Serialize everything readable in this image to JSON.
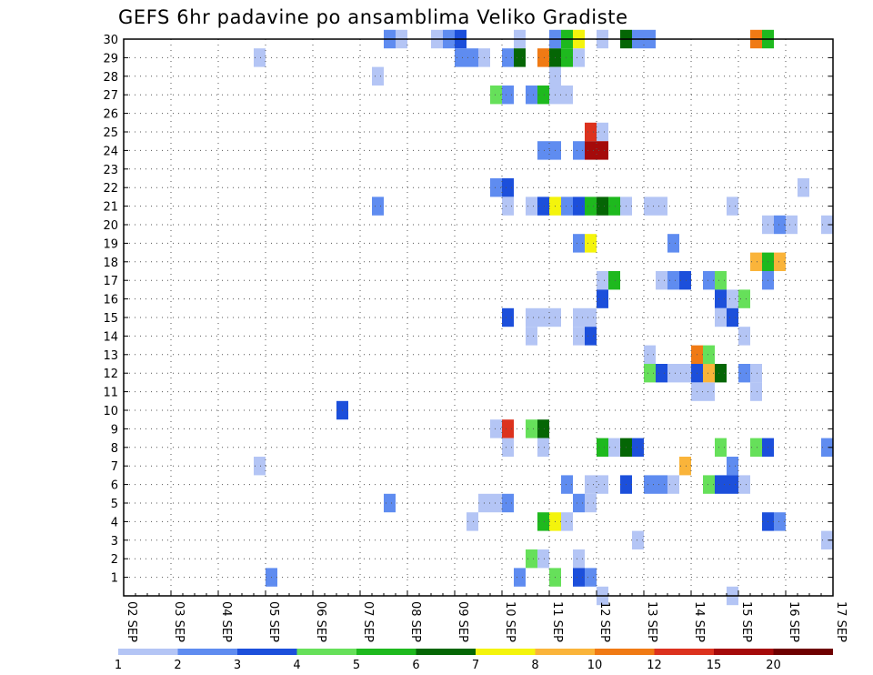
{
  "chart_data": {
    "type": "heatmap",
    "title": "GEFS 6hr padavine po ansamblima Veliko Gradiste",
    "xlabel": "",
    "ylabel": "",
    "x_ticks": [
      "02 SEP",
      "03 SEP",
      "04 SEP",
      "05 SEP",
      "06 SEP",
      "07 SEP",
      "08 SEP",
      "09 SEP",
      "10 SEP",
      "11 SEP",
      "12 SEP",
      "13 SEP",
      "14 SEP",
      "15 SEP",
      "16 SEP",
      "17 SEP"
    ],
    "y_ticks": [
      "1",
      "2",
      "3",
      "4",
      "5",
      "6",
      "7",
      "8",
      "9",
      "10",
      "11",
      "12",
      "13",
      "14",
      "15",
      "16",
      "17",
      "18",
      "19",
      "20",
      "21",
      "22",
      "23",
      "24",
      "25",
      "26",
      "27",
      "28",
      "29",
      "30"
    ],
    "ylim": [
      0,
      30
    ],
    "x_units": "6-hour steps from 02 SEP 00Z (4 per day)",
    "grid": true,
    "colorbar": {
      "labels": [
        "1",
        "2",
        "3",
        "4",
        "5",
        "6",
        "7",
        "8",
        "10",
        "12",
        "15",
        "20"
      ],
      "bins": [
        {
          "min": 1,
          "max": 2,
          "color": "#b4c5f5"
        },
        {
          "min": 2,
          "max": 3,
          "color": "#5f8cf0"
        },
        {
          "min": 3,
          "max": 4,
          "color": "#1c4fdb"
        },
        {
          "min": 4,
          "max": 5,
          "color": "#66e05a"
        },
        {
          "min": 5,
          "max": 6,
          "color": "#1eb91e"
        },
        {
          "min": 6,
          "max": 7,
          "color": "#056605"
        },
        {
          "min": 7,
          "max": 8,
          "color": "#f4f40c"
        },
        {
          "min": 8,
          "max": 10,
          "color": "#fab43a"
        },
        {
          "min": 10,
          "max": 12,
          "color": "#f07a14"
        },
        {
          "min": 12,
          "max": 15,
          "color": "#dc321e"
        },
        {
          "min": 15,
          "max": 20,
          "color": "#a50a0a"
        },
        {
          "min": 20,
          "max": 25,
          "color": "#6e0000"
        }
      ]
    },
    "cells": [
      {
        "member": 30,
        "step": 22,
        "value": 2
      },
      {
        "member": 30,
        "step": 23,
        "value": 1
      },
      {
        "member": 30,
        "step": 26,
        "value": 1
      },
      {
        "member": 30,
        "step": 27,
        "value": 2
      },
      {
        "member": 30,
        "step": 28,
        "value": 3
      },
      {
        "member": 30,
        "step": 33,
        "value": 1
      },
      {
        "member": 30,
        "step": 36,
        "value": 2
      },
      {
        "member": 30,
        "step": 37,
        "value": 5
      },
      {
        "member": 30,
        "step": 38,
        "value": 7
      },
      {
        "member": 30,
        "step": 40,
        "value": 1
      },
      {
        "member": 30,
        "step": 42,
        "value": 6
      },
      {
        "member": 30,
        "step": 43,
        "value": 2
      },
      {
        "member": 30,
        "step": 44,
        "value": 2
      },
      {
        "member": 30,
        "step": 53,
        "value": 10
      },
      {
        "member": 30,
        "step": 54,
        "value": 5
      },
      {
        "member": 29,
        "step": 11,
        "value": 1
      },
      {
        "member": 29,
        "step": 28,
        "value": 2
      },
      {
        "member": 29,
        "step": 29,
        "value": 2
      },
      {
        "member": 29,
        "step": 30,
        "value": 1
      },
      {
        "member": 29,
        "step": 32,
        "value": 2
      },
      {
        "member": 29,
        "step": 33,
        "value": 6
      },
      {
        "member": 29,
        "step": 35,
        "value": 10
      },
      {
        "member": 29,
        "step": 36,
        "value": 6
      },
      {
        "member": 29,
        "step": 37,
        "value": 5
      },
      {
        "member": 29,
        "step": 38,
        "value": 1
      },
      {
        "member": 28,
        "step": 21,
        "value": 1
      },
      {
        "member": 28,
        "step": 36,
        "value": 1
      },
      {
        "member": 27,
        "step": 31,
        "value": 4
      },
      {
        "member": 27,
        "step": 32,
        "value": 2
      },
      {
        "member": 27,
        "step": 34,
        "value": 2
      },
      {
        "member": 27,
        "step": 35,
        "value": 5
      },
      {
        "member": 27,
        "step": 36,
        "value": 1
      },
      {
        "member": 27,
        "step": 37,
        "value": 1
      },
      {
        "member": 25,
        "step": 39,
        "value": 12
      },
      {
        "member": 25,
        "step": 40,
        "value": 1
      },
      {
        "member": 24,
        "step": 35,
        "value": 2
      },
      {
        "member": 24,
        "step": 36,
        "value": 2
      },
      {
        "member": 24,
        "step": 38,
        "value": 2
      },
      {
        "member": 24,
        "step": 39,
        "value": 15
      },
      {
        "member": 24,
        "step": 40,
        "value": 15
      },
      {
        "member": 22,
        "step": 31,
        "value": 2
      },
      {
        "member": 22,
        "step": 32,
        "value": 3
      },
      {
        "member": 22,
        "step": 57,
        "value": 1
      },
      {
        "member": 21,
        "step": 21,
        "value": 2
      },
      {
        "member": 21,
        "step": 32,
        "value": 1
      },
      {
        "member": 21,
        "step": 34,
        "value": 1
      },
      {
        "member": 21,
        "step": 35,
        "value": 3
      },
      {
        "member": 21,
        "step": 36,
        "value": 7
      },
      {
        "member": 21,
        "step": 37,
        "value": 2
      },
      {
        "member": 21,
        "step": 38,
        "value": 3
      },
      {
        "member": 21,
        "step": 39,
        "value": 5
      },
      {
        "member": 21,
        "step": 40,
        "value": 6
      },
      {
        "member": 21,
        "step": 41,
        "value": 5
      },
      {
        "member": 21,
        "step": 42,
        "value": 1
      },
      {
        "member": 21,
        "step": 44,
        "value": 1
      },
      {
        "member": 21,
        "step": 45,
        "value": 1
      },
      {
        "member": 21,
        "step": 51,
        "value": 1
      },
      {
        "member": 20,
        "step": 54,
        "value": 1
      },
      {
        "member": 20,
        "step": 55,
        "value": 2
      },
      {
        "member": 20,
        "step": 56,
        "value": 1
      },
      {
        "member": 20,
        "step": 59,
        "value": 1
      },
      {
        "member": 19,
        "step": 38,
        "value": 2
      },
      {
        "member": 19,
        "step": 39,
        "value": 7
      },
      {
        "member": 19,
        "step": 46,
        "value": 2
      },
      {
        "member": 18,
        "step": 53,
        "value": 8
      },
      {
        "member": 18,
        "step": 54,
        "value": 5
      },
      {
        "member": 18,
        "step": 55,
        "value": 8
      },
      {
        "member": 17,
        "step": 40,
        "value": 1
      },
      {
        "member": 17,
        "step": 41,
        "value": 5
      },
      {
        "member": 17,
        "step": 45,
        "value": 1
      },
      {
        "member": 17,
        "step": 46,
        "value": 2
      },
      {
        "member": 17,
        "step": 47,
        "value": 3
      },
      {
        "member": 17,
        "step": 49,
        "value": 2
      },
      {
        "member": 17,
        "step": 50,
        "value": 4
      },
      {
        "member": 17,
        "step": 54,
        "value": 2
      },
      {
        "member": 16,
        "step": 40,
        "value": 3
      },
      {
        "member": 16,
        "step": 50,
        "value": 3
      },
      {
        "member": 16,
        "step": 51,
        "value": 1
      },
      {
        "member": 16,
        "step": 52,
        "value": 4
      },
      {
        "member": 15,
        "step": 32,
        "value": 3
      },
      {
        "member": 15,
        "step": 34,
        "value": 1
      },
      {
        "member": 15,
        "step": 35,
        "value": 1
      },
      {
        "member": 15,
        "step": 36,
        "value": 1
      },
      {
        "member": 15,
        "step": 38,
        "value": 1
      },
      {
        "member": 15,
        "step": 39,
        "value": 1
      },
      {
        "member": 15,
        "step": 50,
        "value": 1
      },
      {
        "member": 15,
        "step": 51,
        "value": 3
      },
      {
        "member": 14,
        "step": 34,
        "value": 1
      },
      {
        "member": 14,
        "step": 38,
        "value": 1
      },
      {
        "member": 14,
        "step": 39,
        "value": 3
      },
      {
        "member": 14,
        "step": 52,
        "value": 1
      },
      {
        "member": 13,
        "step": 44,
        "value": 1
      },
      {
        "member": 13,
        "step": 48,
        "value": 10
      },
      {
        "member": 13,
        "step": 49,
        "value": 4
      },
      {
        "member": 12,
        "step": 44,
        "value": 4
      },
      {
        "member": 12,
        "step": 45,
        "value": 3
      },
      {
        "member": 12,
        "step": 46,
        "value": 1
      },
      {
        "member": 12,
        "step": 47,
        "value": 1
      },
      {
        "member": 12,
        "step": 48,
        "value": 3
      },
      {
        "member": 12,
        "step": 49,
        "value": 8
      },
      {
        "member": 12,
        "step": 50,
        "value": 6
      },
      {
        "member": 12,
        "step": 52,
        "value": 2
      },
      {
        "member": 12,
        "step": 53,
        "value": 1
      },
      {
        "member": 11,
        "step": 48,
        "value": 1
      },
      {
        "member": 11,
        "step": 49,
        "value": 1
      },
      {
        "member": 11,
        "step": 53,
        "value": 1
      },
      {
        "member": 10,
        "step": 18,
        "value": 3
      },
      {
        "member": 9,
        "step": 31,
        "value": 1
      },
      {
        "member": 9,
        "step": 32,
        "value": 12
      },
      {
        "member": 9,
        "step": 34,
        "value": 4
      },
      {
        "member": 9,
        "step": 35,
        "value": 6
      },
      {
        "member": 8,
        "step": 32,
        "value": 1
      },
      {
        "member": 8,
        "step": 35,
        "value": 1
      },
      {
        "member": 8,
        "step": 40,
        "value": 5
      },
      {
        "member": 8,
        "step": 41,
        "value": 1
      },
      {
        "member": 8,
        "step": 42,
        "value": 6
      },
      {
        "member": 8,
        "step": 43,
        "value": 3
      },
      {
        "member": 8,
        "step": 50,
        "value": 4
      },
      {
        "member": 8,
        "step": 53,
        "value": 4
      },
      {
        "member": 8,
        "step": 54,
        "value": 3
      },
      {
        "member": 8,
        "step": 59,
        "value": 2
      },
      {
        "member": 7,
        "step": 11,
        "value": 1
      },
      {
        "member": 7,
        "step": 47,
        "value": 8
      },
      {
        "member": 7,
        "step": 51,
        "value": 2
      },
      {
        "member": 6,
        "step": 37,
        "value": 2
      },
      {
        "member": 6,
        "step": 39,
        "value": 1
      },
      {
        "member": 6,
        "step": 40,
        "value": 1
      },
      {
        "member": 6,
        "step": 42,
        "value": 3
      },
      {
        "member": 6,
        "step": 44,
        "value": 2
      },
      {
        "member": 6,
        "step": 45,
        "value": 2
      },
      {
        "member": 6,
        "step": 46,
        "value": 1
      },
      {
        "member": 6,
        "step": 49,
        "value": 4
      },
      {
        "member": 6,
        "step": 50,
        "value": 3
      },
      {
        "member": 6,
        "step": 51,
        "value": 3
      },
      {
        "member": 6,
        "step": 52,
        "value": 1
      },
      {
        "member": 5,
        "step": 22,
        "value": 2
      },
      {
        "member": 5,
        "step": 30,
        "value": 1
      },
      {
        "member": 5,
        "step": 31,
        "value": 1
      },
      {
        "member": 5,
        "step": 32,
        "value": 2
      },
      {
        "member": 5,
        "step": 38,
        "value": 2
      },
      {
        "member": 5,
        "step": 39,
        "value": 1
      },
      {
        "member": 4,
        "step": 29,
        "value": 1
      },
      {
        "member": 4,
        "step": 35,
        "value": 5
      },
      {
        "member": 4,
        "step": 36,
        "value": 7
      },
      {
        "member": 4,
        "step": 37,
        "value": 1
      },
      {
        "member": 4,
        "step": 54,
        "value": 3
      },
      {
        "member": 4,
        "step": 55,
        "value": 2
      },
      {
        "member": 3,
        "step": 43,
        "value": 1
      },
      {
        "member": 3,
        "step": 59,
        "value": 1
      },
      {
        "member": 2,
        "step": 34,
        "value": 4
      },
      {
        "member": 2,
        "step": 35,
        "value": 1
      },
      {
        "member": 2,
        "step": 38,
        "value": 1
      },
      {
        "member": 1,
        "step": 12,
        "value": 2
      },
      {
        "member": 1,
        "step": 33,
        "value": 2
      },
      {
        "member": 1,
        "step": 36,
        "value": 4
      },
      {
        "member": 1,
        "step": 38,
        "value": 3
      },
      {
        "member": 1,
        "step": 39,
        "value": 2
      },
      {
        "member": 0,
        "step": 40,
        "value": 1
      },
      {
        "member": 0,
        "step": 51,
        "value": 1
      }
    ]
  }
}
